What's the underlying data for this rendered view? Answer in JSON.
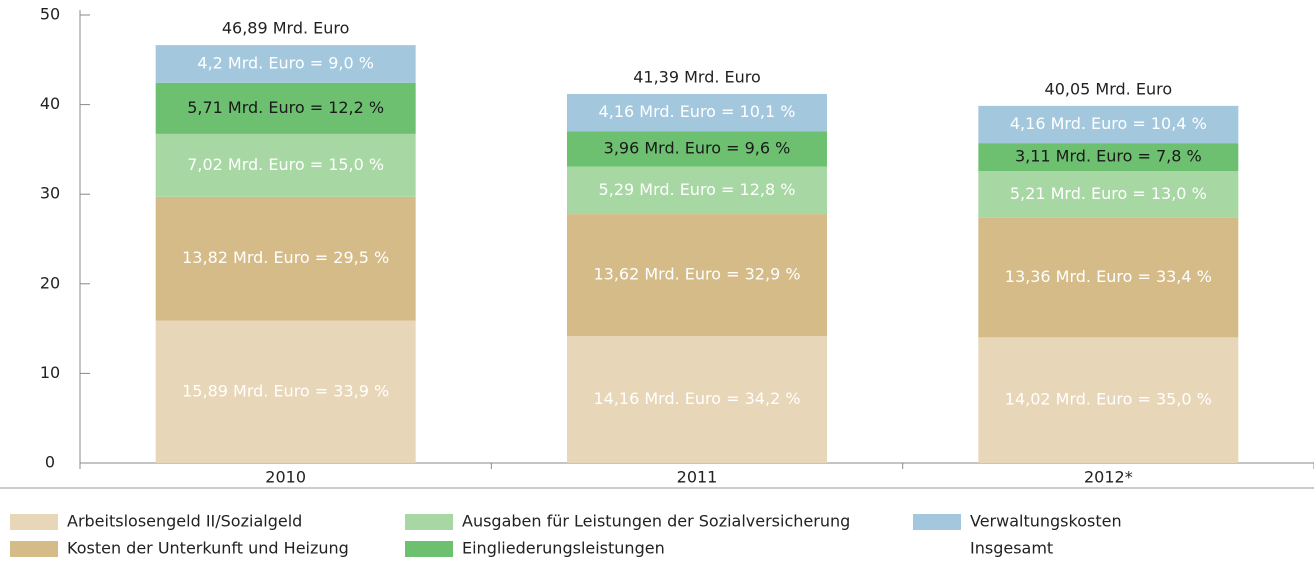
{
  "chart_data": {
    "type": "stacked_bar",
    "categories": [
      "2010",
      "2011",
      "2012*"
    ],
    "ylim": [
      0,
      50
    ],
    "yticks": [
      0,
      10,
      20,
      30,
      40,
      50
    ],
    "series": [
      {
        "name": "Arbeitslosengeld II/Sozialgeld",
        "color": "#e8d6b8",
        "values": [
          15.89,
          14.16,
          14.02
        ],
        "value_labels": [
          "15,89 Mrd. Euro = 33,9 %",
          "14,16 Mrd. Euro = 34,2 %",
          "14,02 Mrd. Euro = 35,0 %"
        ]
      },
      {
        "name": "Kosten der Unterkunft und Heizung",
        "color": "#d5bb88",
        "values": [
          13.82,
          13.62,
          13.36
        ],
        "value_labels": [
          "13,82 Mrd. Euro = 29,5 %",
          "13,62 Mrd. Euro = 32,9 %",
          "13,36 Mrd. Euro = 33,4 %"
        ]
      },
      {
        "name": "Ausgaben für Leistungen der Sozialversicherung",
        "color": "#a7d7a3",
        "values": [
          7.02,
          5.29,
          5.21
        ],
        "value_labels": [
          "7,02 Mrd. Euro = 15,0 %",
          "5,29 Mrd. Euro = 12,8 %",
          "5,21 Mrd. Euro = 13,0 %"
        ]
      },
      {
        "name": "Eingliederungsleistungen",
        "color": "#6cc070",
        "values": [
          5.71,
          3.96,
          3.11
        ],
        "value_labels": [
          "5,71 Mrd. Euro = 12,2 %",
          "3,96 Mrd. Euro = 9,6 %",
          "3,11 Mrd. Euro = 7,8 %"
        ]
      },
      {
        "name": "Verwaltungskosten",
        "color": "#a3c8de",
        "values": [
          4.2,
          4.16,
          4.16
        ],
        "value_labels": [
          "4,2 Mrd. Euro = 9,0 %",
          "4,16 Mrd. Euro = 10,1 %",
          "4,16 Mrd. Euro = 10,4 %"
        ]
      }
    ],
    "totals": {
      "name": "Insgesamt",
      "color": "#1f3f8a",
      "values": [
        46.89,
        41.39,
        40.05
      ],
      "value_labels": [
        "46,89 Mrd. Euro",
        "41,39 Mrd. Euro",
        "40,05 Mrd. Euro"
      ]
    }
  }
}
